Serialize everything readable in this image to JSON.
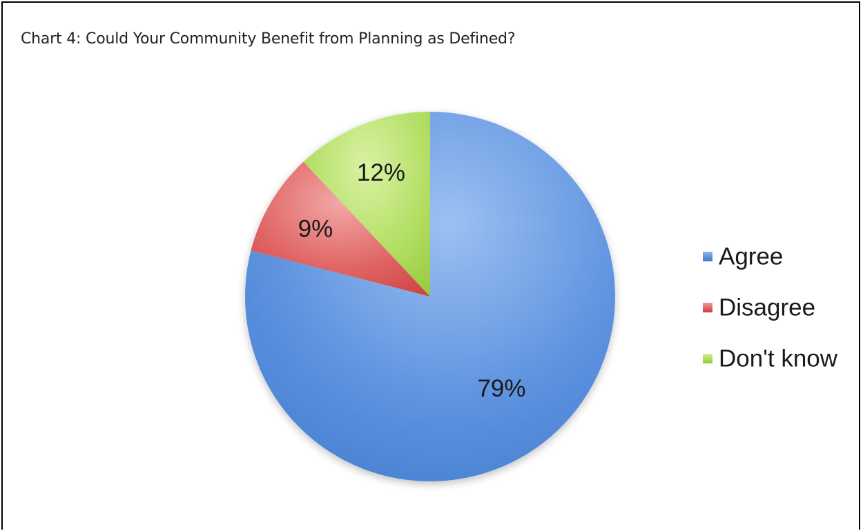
{
  "chart_data": {
    "type": "pie",
    "title": "Chart 4: Could Your Community Benefit from Planning as Defined?",
    "categories": [
      "Agree",
      "Disagree",
      "Don't know"
    ],
    "values": [
      79,
      9,
      12
    ],
    "value_labels": [
      "79%",
      "9%",
      "12%"
    ],
    "colors": [
      "#4a84d6",
      "#d94a4a",
      "#9fd040"
    ],
    "legend_position": "right"
  }
}
